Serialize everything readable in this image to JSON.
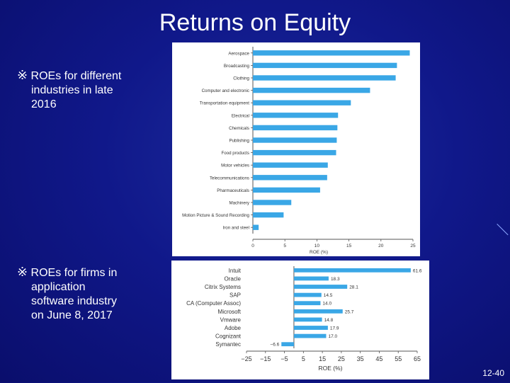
{
  "slide": {
    "title": "Returns on Equity",
    "page_number": "12-40"
  },
  "bullets": [
    {
      "mark": "※",
      "lines": [
        "ROEs for different",
        "industries in late",
        "2016"
      ]
    },
    {
      "mark": "※",
      "lines": [
        "ROEs for firms in",
        "application",
        "software industry",
        "on June 8, 2017"
      ]
    }
  ],
  "colors": {
    "bar": "#3aa7e6",
    "background": "#10188a",
    "text": "#ffffff"
  },
  "chart_data": [
    {
      "type": "bar",
      "orientation": "horizontal",
      "xlabel": "ROE (%)",
      "xlim": [
        0,
        25
      ],
      "xticks": [
        0,
        5,
        10,
        15,
        20,
        25
      ],
      "categories": [
        "Aerospace",
        "Broadcasting",
        "Clothing",
        "Computer and electronic",
        "Transportation equipment",
        "Electrical",
        "Chemicals",
        "Publishing",
        "Food products",
        "Motor vehicles",
        "Telecommunications",
        "Pharmaceuticals",
        "Machinery",
        "Motion Picture & Sound Recording",
        "Iron and steel"
      ],
      "values": [
        24.5,
        22.5,
        22.3,
        18.3,
        15.3,
        13.3,
        13.2,
        13.1,
        13.0,
        11.7,
        11.6,
        10.5,
        6.0,
        4.8,
        0.9
      ]
    },
    {
      "type": "bar",
      "orientation": "horizontal",
      "xlabel": "ROE (%)",
      "xlim": [
        -25,
        65
      ],
      "xticks": [
        -25,
        -15,
        -5,
        5,
        15,
        25,
        35,
        45,
        55,
        65
      ],
      "xtick_labels": [
        "−25",
        "−15",
        "−5",
        "5",
        "15",
        "25",
        "35",
        "45",
        "55",
        "65"
      ],
      "categories": [
        "Intuit",
        "Oracle",
        "Citrix Systems",
        "SAP",
        "CA (Computer Assoc)",
        "Microsoft",
        "Vmware",
        "Adobe",
        "Cognizant",
        "Symantec"
      ],
      "values": [
        61.6,
        18.3,
        28.1,
        14.5,
        14.0,
        25.7,
        14.8,
        17.9,
        17.0,
        -6.6
      ],
      "value_labels": [
        "61.6",
        "18.3",
        "28.1",
        "14.5",
        "14.0",
        "25.7",
        "14.8",
        "17.9",
        "17.0",
        "−6.6"
      ]
    }
  ]
}
